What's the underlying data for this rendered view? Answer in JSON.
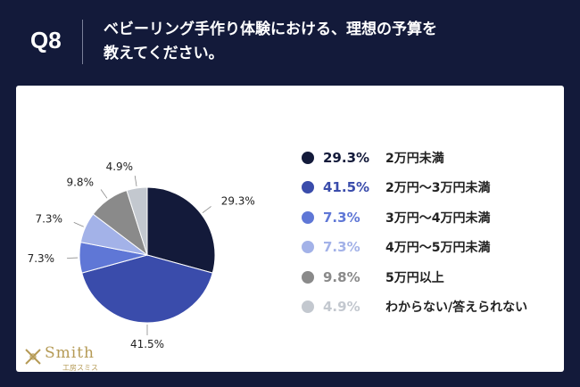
{
  "header": {
    "question_number": "Q8",
    "question_line1": "ベビーリング手作り体験における、理想の予算を",
    "question_line2": "教えてください。"
  },
  "chart_data": {
    "type": "pie",
    "title": "ベビーリング手作り体験における、理想の予算を教えてください。",
    "categories": [
      "2万円未満",
      "2万円〜3万円未満",
      "3万円〜4万円未満",
      "4万円〜5万円未満",
      "5万円以上",
      "わからない/答えられない"
    ],
    "values": [
      29.3,
      41.5,
      7.3,
      7.3,
      9.8,
      4.9
    ],
    "labels": [
      "29.3%",
      "41.5%",
      "7.3%",
      "7.3%",
      "9.8%",
      "4.9%"
    ],
    "colors": [
      "#131a3a",
      "#3a4cab",
      "#5f77d6",
      "#a3b2e8",
      "#8a8a8a",
      "#c3c8cf"
    ],
    "legend_position": "right"
  },
  "logo": {
    "name": "Smith",
    "subtitle": "工房スミス"
  }
}
